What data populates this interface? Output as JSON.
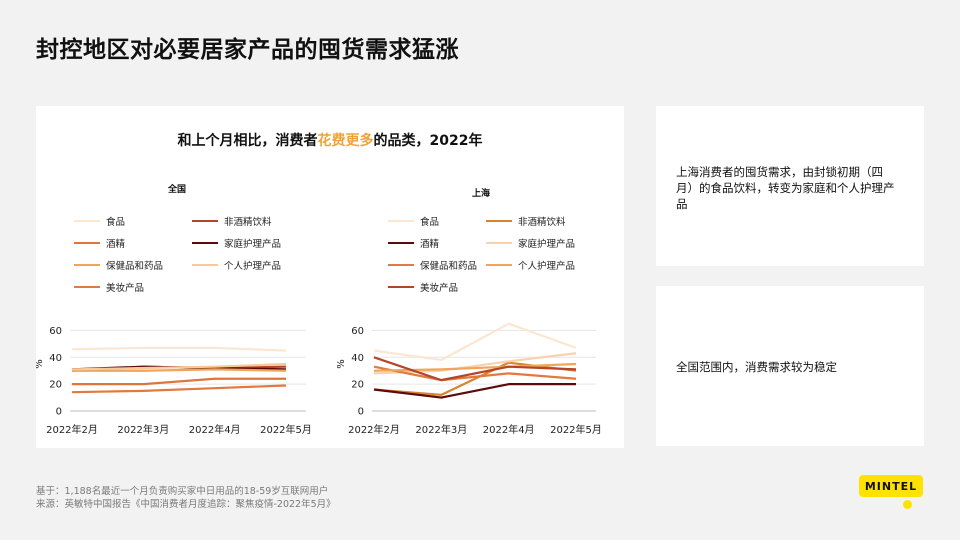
{
  "header": {
    "title": "封控地区对必要居家产品的囤货需求猛涨"
  },
  "chart_panel": {
    "title_prefix": "和上个月相比，消费者",
    "title_highlight": "花费更多",
    "title_suffix": "的品类，2022年",
    "highlight_color": "#f0a33a"
  },
  "chart_data": [
    {
      "type": "line",
      "title": "全国",
      "x": [
        "2022年2月",
        "2022年3月",
        "2022年4月",
        "2022年5月"
      ],
      "xlabel": "",
      "ylabel": "%",
      "ylim": [
        0,
        70
      ],
      "yticks": [
        0,
        20,
        40,
        60
      ],
      "legend_position": "top",
      "series": [
        {
          "name": "食品",
          "color": "#fbe6d2",
          "values": [
            46,
            47,
            47,
            45
          ]
        },
        {
          "name": "非酒精饮料",
          "color": "#b5452a",
          "values": [
            30,
            33,
            32,
            33
          ]
        },
        {
          "name": "酒精",
          "color": "#e0753c",
          "values": [
            20,
            20,
            24,
            24
          ]
        },
        {
          "name": "家庭护理产品",
          "color": "#5c0a0a",
          "values": [
            31,
            33,
            32,
            31
          ]
        },
        {
          "name": "保健品和药品",
          "color": "#eea65c",
          "values": [
            30,
            30,
            31,
            30
          ]
        },
        {
          "name": "个人护理产品",
          "color": "#f8c89a",
          "values": [
            31,
            32,
            33,
            35
          ]
        },
        {
          "name": "美妆产品",
          "color": "#e2793f",
          "values": [
            14,
            15,
            17,
            19
          ]
        }
      ]
    },
    {
      "type": "line",
      "title": "上海",
      "x": [
        "2022年2月",
        "2022年3月",
        "2022年4月",
        "2022年5月"
      ],
      "xlabel": "",
      "ylabel": "%",
      "ylim": [
        0,
        70
      ],
      "yticks": [
        0,
        20,
        40,
        60
      ],
      "legend_position": "top",
      "series": [
        {
          "name": "食品",
          "color": "#fbe6d2",
          "values": [
            45,
            38,
            65,
            47
          ]
        },
        {
          "name": "非酒精饮料",
          "color": "#d8832e",
          "values": [
            16,
            12,
            36,
            30
          ]
        },
        {
          "name": "酒精",
          "color": "#5c0a0a",
          "values": [
            16,
            10,
            20,
            20
          ]
        },
        {
          "name": "家庭护理产品",
          "color": "#f8d2ad",
          "values": [
            28,
            30,
            37,
            43
          ]
        },
        {
          "name": "保健品和药品",
          "color": "#e2793f",
          "values": [
            33,
            23,
            28,
            24
          ]
        },
        {
          "name": "个人护理产品",
          "color": "#eea65c",
          "values": [
            30,
            31,
            33,
            35
          ]
        },
        {
          "name": "美妆产品",
          "color": "#b5452a",
          "values": [
            40,
            23,
            33,
            31
          ]
        }
      ]
    }
  ],
  "side_boxes": [
    {
      "text": "上海消费者的囤货需求，由封锁初期（四月）的食品饮料，转变为家庭和个人护理产品"
    },
    {
      "text": "全国范围内，消费需求较为稳定"
    }
  ],
  "footnote": {
    "base": "基于：1,188名最近一个月负责购买家中日用品的18-59岁互联网用户",
    "source": "来源：英敏特中国报告《中国消费者月度追踪：聚焦疫情-2022年5月》"
  },
  "logo": {
    "text": "MINTEL",
    "color": "#ffe200"
  }
}
